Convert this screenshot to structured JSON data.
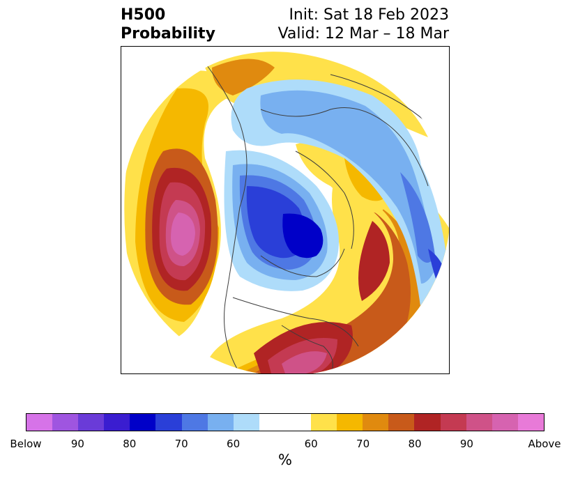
{
  "header": {
    "title_line1": "H500",
    "title_line2": "Probability",
    "init_text": "Init: Sat 18 Feb 2023",
    "valid_text": "Valid: 12 Mar – 18 Mar"
  },
  "colorbar": {
    "unit": "%",
    "colors": [
      "#d673e8",
      "#9f55e0",
      "#6a3bd8",
      "#3a1dd0",
      "#0000c8",
      "#2a3fd8",
      "#4e78e4",
      "#78b0f0",
      "#aedcfa",
      "#ffffff",
      "#ffe14a",
      "#f5b800",
      "#e08a0f",
      "#c85a1a",
      "#b02424",
      "#c43a52",
      "#cf5288",
      "#d663b0",
      "#e87ad8"
    ],
    "ticks": [
      {
        "label": "Below"
      },
      {
        "label": "90"
      },
      {
        "label": "80"
      },
      {
        "label": "70"
      },
      {
        "label": "60"
      },
      {
        "label": "60"
      },
      {
        "label": "70"
      },
      {
        "label": "80"
      },
      {
        "label": "90"
      },
      {
        "label": "Above"
      }
    ]
  },
  "map": {
    "projection": "north-polar-stereographic",
    "field": "500 hPa height anomaly probability"
  }
}
